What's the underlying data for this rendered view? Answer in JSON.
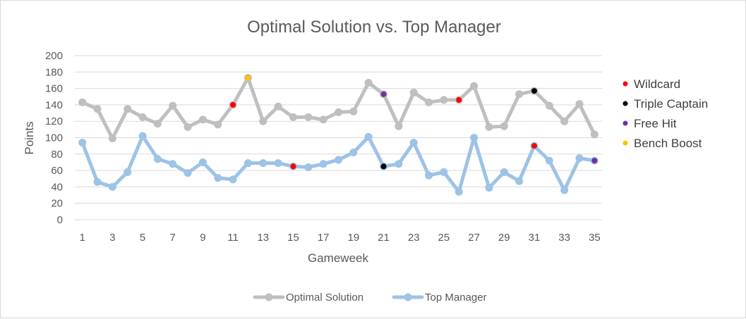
{
  "chart_data": {
    "type": "line",
    "title": "Optimal Solution vs. Top Manager",
    "xlabel": "Gameweek",
    "ylabel": "Points",
    "ylim": [
      0,
      200
    ],
    "yticks": [
      0,
      20,
      40,
      60,
      80,
      100,
      120,
      140,
      160,
      180,
      200
    ],
    "x": [
      1,
      2,
      3,
      4,
      5,
      6,
      7,
      8,
      9,
      10,
      11,
      12,
      13,
      14,
      15,
      16,
      17,
      18,
      19,
      20,
      21,
      22,
      23,
      24,
      25,
      26,
      27,
      28,
      29,
      30,
      31,
      32,
      33,
      34,
      35
    ],
    "xtick_labels": [
      "1",
      "3",
      "5",
      "7",
      "9",
      "11",
      "13",
      "15",
      "17",
      "19",
      "21",
      "23",
      "25",
      "27",
      "29",
      "31",
      "33",
      "35"
    ],
    "grid": true,
    "series": [
      {
        "name": "Optimal Solution",
        "color": "#bfbfbf",
        "values": [
          143,
          135,
          99,
          135,
          125,
          117,
          139,
          113,
          122,
          116,
          140,
          173,
          120,
          138,
          125,
          125,
          122,
          131,
          132,
          167,
          153,
          114,
          155,
          143,
          146,
          146,
          163,
          113,
          114,
          153,
          157,
          139,
          120,
          141,
          104
        ]
      },
      {
        "name": "Top Manager",
        "color": "#9dc3e6",
        "values": [
          94,
          46,
          40,
          58,
          102,
          74,
          68,
          57,
          70,
          51,
          49,
          69,
          69,
          69,
          65,
          64,
          68,
          73,
          82,
          101,
          65,
          68,
          94,
          54,
          58,
          34,
          100,
          39,
          58,
          47,
          90,
          72,
          36,
          75,
          72
        ]
      }
    ],
    "chips": [
      {
        "name": "Wildcard",
        "color": "#ff0000"
      },
      {
        "name": "Triple Captain",
        "color": "#000000"
      },
      {
        "name": "Free Hit",
        "color": "#7030a0"
      },
      {
        "name": "Bench Boost",
        "color": "#ffc000"
      }
    ],
    "chip_markers": [
      {
        "series": 0,
        "x": 11,
        "chip": 0
      },
      {
        "series": 0,
        "x": 12,
        "chip": 3
      },
      {
        "series": 0,
        "x": 21,
        "chip": 2
      },
      {
        "series": 0,
        "x": 26,
        "chip": 0
      },
      {
        "series": 0,
        "x": 31,
        "chip": 1
      },
      {
        "series": 1,
        "x": 15,
        "chip": 0
      },
      {
        "series": 1,
        "x": 21,
        "chip": 1
      },
      {
        "series": 1,
        "x": 31,
        "chip": 0
      },
      {
        "series": 1,
        "x": 35,
        "chip": 2
      }
    ],
    "legend_position": "bottom",
    "chip_legend_position": "right"
  }
}
